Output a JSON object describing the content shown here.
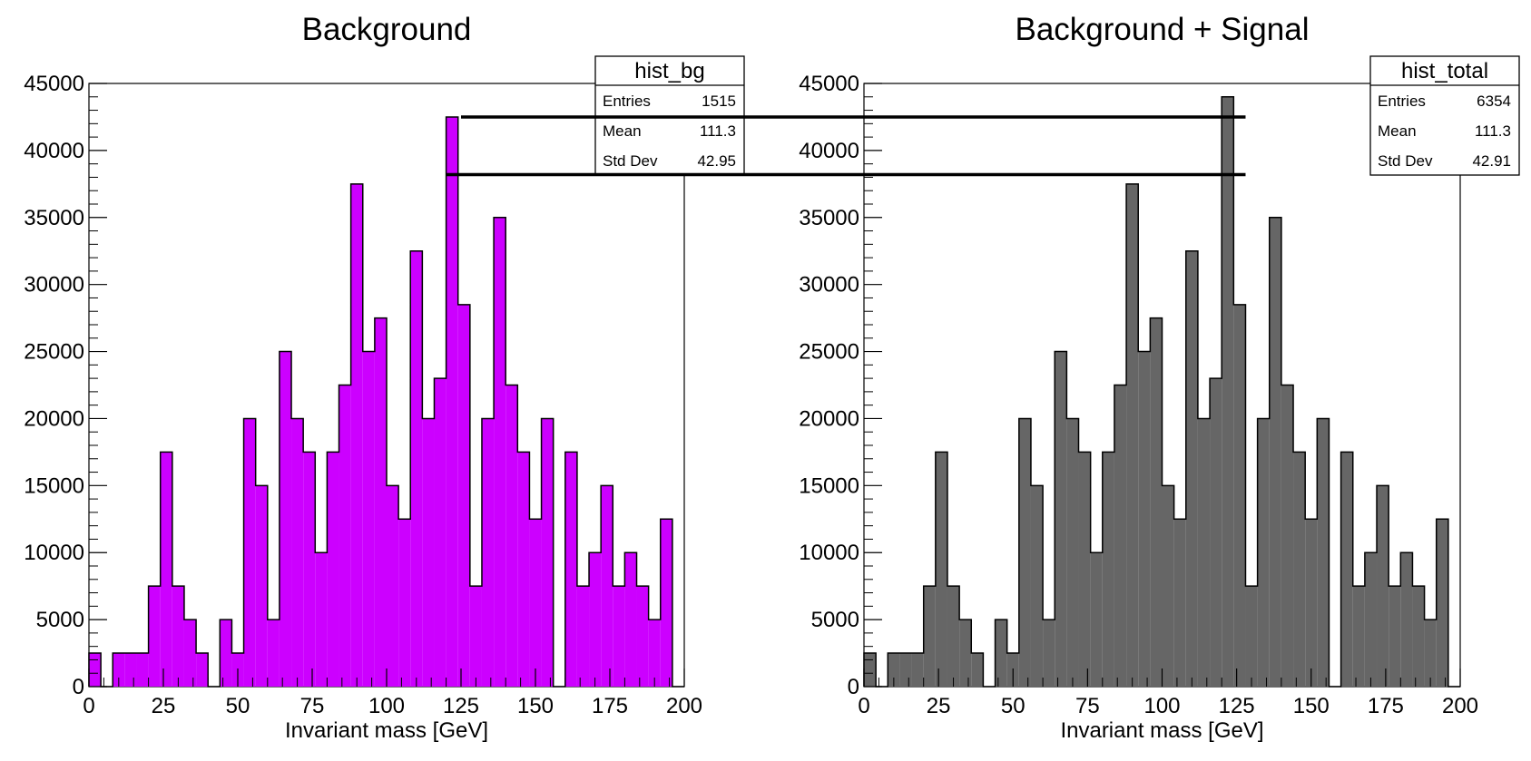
{
  "chart_data": [
    {
      "type": "bar",
      "title": "Background",
      "xlabel": "Invariant mass [GeV]",
      "ylabel": "",
      "xlim": [
        0,
        200
      ],
      "ylim": [
        0,
        45000
      ],
      "xticks": [
        0,
        25,
        50,
        75,
        100,
        125,
        150,
        175,
        200
      ],
      "yticks": [
        0,
        5000,
        10000,
        15000,
        20000,
        25000,
        30000,
        35000,
        40000,
        45000
      ],
      "bin_width": 4,
      "fill_color": "#cc00ff",
      "values": [
        2500,
        0,
        2500,
        2500,
        2500,
        7500,
        17500,
        7500,
        5000,
        2500,
        0,
        5000,
        2500,
        20000,
        15000,
        5000,
        25000,
        20000,
        17500,
        10000,
        17500,
        22500,
        37500,
        25000,
        27500,
        15000,
        12500,
        32500,
        20000,
        23000,
        42500,
        28500,
        7500,
        20000,
        35000,
        22500,
        17500,
        12500,
        20000,
        0,
        17500,
        7500,
        10000,
        15000,
        7500,
        10000,
        7500,
        5000,
        12500,
        0
      ],
      "stats": {
        "name": "hist_bg",
        "rows": [
          {
            "label": "Entries",
            "value": "1515"
          },
          {
            "label": "Mean",
            "value": "111.3"
          },
          {
            "label": "Std Dev",
            "value": "42.95"
          }
        ]
      }
    },
    {
      "type": "bar",
      "title": "Background + Signal",
      "xlabel": "Invariant mass [GeV]",
      "ylabel": "",
      "xlim": [
        0,
        200
      ],
      "ylim": [
        0,
        45000
      ],
      "xticks": [
        0,
        25,
        50,
        75,
        100,
        125,
        150,
        175,
        200
      ],
      "yticks": [
        0,
        5000,
        10000,
        15000,
        20000,
        25000,
        30000,
        35000,
        40000,
        45000
      ],
      "bin_width": 4,
      "fill_color": "#666666",
      "values": [
        2500,
        0,
        2500,
        2500,
        2500,
        7500,
        17500,
        7500,
        5000,
        2500,
        0,
        5000,
        2500,
        20000,
        15000,
        5000,
        25000,
        20000,
        17500,
        10000,
        17500,
        22500,
        37500,
        25000,
        27500,
        15000,
        12500,
        32500,
        20000,
        23000,
        44000,
        28500,
        7500,
        20000,
        35000,
        22500,
        17500,
        12500,
        20000,
        0,
        17500,
        7500,
        10000,
        15000,
        7500,
        10000,
        7500,
        5000,
        12500,
        0
      ],
      "stats": {
        "name": "hist_total",
        "rows": [
          {
            "label": "Entries",
            "value": "6354"
          },
          {
            "label": "Mean",
            "value": "111.3"
          },
          {
            "label": "Std Dev",
            "value": "42.91"
          }
        ]
      }
    }
  ],
  "annotations": {
    "reference_lines": [
      {
        "y": 42500,
        "x_start": 125,
        "x_end": 128
      },
      {
        "y": 38200,
        "x_start": 120,
        "x_end": 128
      }
    ],
    "line_color": "#000000"
  }
}
